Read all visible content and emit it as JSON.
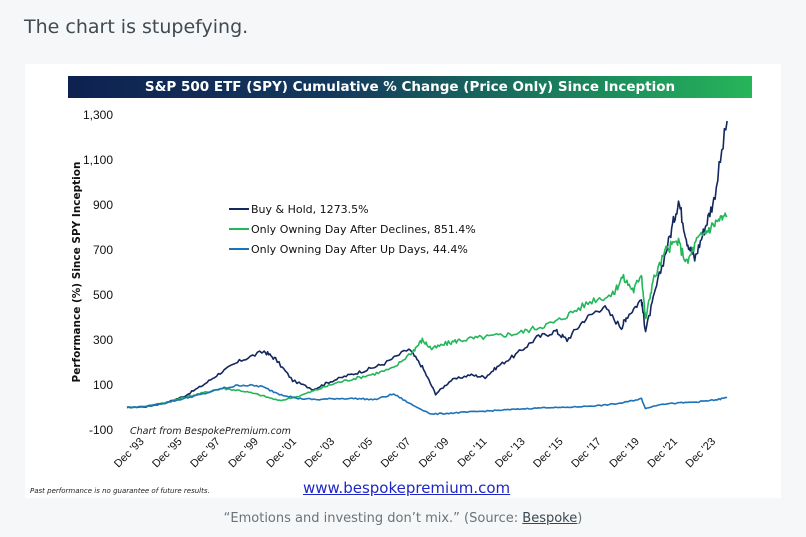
{
  "lead_text": "The chart is stupefying.",
  "chart_data": {
    "type": "line",
    "title": "S&P 500 ETF (SPY) Cumulative % Change (Price Only) Since Inception",
    "ylabel": "Performance (%) Since SPY Inception",
    "xlabel": "",
    "ylim": [
      -100,
      1300
    ],
    "yticks": [
      "1,300",
      "1,100",
      "900",
      "700",
      "500",
      "300",
      "100",
      "-100"
    ],
    "ytick_values": [
      1300,
      1100,
      900,
      700,
      500,
      300,
      100,
      -100
    ],
    "xticks": [
      "Dec '93",
      "Dec '95",
      "Dec '97",
      "Dec '99",
      "Dec '01",
      "Dec '03",
      "Dec '05",
      "Dec '07",
      "Dec '09",
      "Dec '11",
      "Dec '13",
      "Dec '15",
      "Dec '17",
      "Dec '19",
      "Dec '21",
      "Dec '23"
    ],
    "xtick_years": [
      1993.92,
      1995.92,
      1997.92,
      1999.92,
      2001.92,
      2003.92,
      2005.92,
      2007.92,
      2009.92,
      2011.92,
      2013.92,
      2015.92,
      2017.92,
      2019.92,
      2021.92,
      2023.92
    ],
    "xlim": [
      1993.0,
      2024.6
    ],
    "series": [
      {
        "name": "Buy & Hold, 1273.5%",
        "color": "#14275e",
        "x": [
          1993.0,
          1994.0,
          1995.0,
          1996.0,
          1997.0,
          1998.0,
          1999.0,
          2000.2,
          2000.8,
          2001.7,
          2002.8,
          2003.5,
          2004.5,
          2005.5,
          2006.5,
          2007.8,
          2008.5,
          2009.2,
          2010.0,
          2011.0,
          2011.8,
          2012.5,
          2013.5,
          2014.5,
          2015.5,
          2016.1,
          2017.0,
          2018.0,
          2018.95,
          2019.2,
          2020.0,
          2020.22,
          2020.8,
          2021.5,
          2021.95,
          2022.4,
          2022.8,
          2023.3,
          2023.8,
          2024.5
        ],
        "y": [
          0,
          3,
          20,
          50,
          100,
          160,
          210,
          250,
          215,
          120,
          80,
          110,
          140,
          165,
          195,
          260,
          180,
          60,
          120,
          145,
          135,
          185,
          240,
          310,
          340,
          300,
          390,
          450,
          355,
          400,
          480,
          340,
          540,
          760,
          920,
          740,
          660,
          790,
          920,
          1273.5
        ]
      },
      {
        "name": "Only Owning Day After Declines, 851.4%",
        "color": "#23b75a",
        "x": [
          1993.0,
          1994.0,
          1995.0,
          1996.0,
          1997.0,
          1998.0,
          1999.0,
          2000.0,
          2001.0,
          2002.0,
          2003.0,
          2004.0,
          2005.0,
          2006.0,
          2007.0,
          2008.0,
          2008.5,
          2009.0,
          2009.8,
          2010.5,
          2011.5,
          2012.5,
          2013.5,
          2014.5,
          2015.5,
          2016.5,
          2017.5,
          2018.5,
          2019.0,
          2019.6,
          2020.0,
          2020.22,
          2020.6,
          2021.3,
          2021.9,
          2022.4,
          2022.9,
          2023.5,
          2024.0,
          2024.5
        ],
        "y": [
          0,
          5,
          22,
          45,
          65,
          85,
          75,
          55,
          30,
          50,
          80,
          110,
          130,
          150,
          175,
          250,
          300,
          260,
          285,
          300,
          310,
          320,
          330,
          355,
          380,
          430,
          480,
          500,
          580,
          520,
          600,
          390,
          560,
          700,
          740,
          640,
          740,
          790,
          830,
          851.4
        ]
      },
      {
        "name": "Only Owning Day After Up Days, 44.4%",
        "color": "#1d72b8",
        "x": [
          1993.0,
          1994.0,
          1995.0,
          1996.0,
          1997.0,
          1998.0,
          1999.0,
          2000.0,
          2001.0,
          2002.0,
          2003.0,
          2004.0,
          2005.0,
          2006.0,
          2007.0,
          2008.0,
          2009.0,
          2010.0,
          2011.0,
          2012.0,
          2013.0,
          2014.0,
          2015.0,
          2016.0,
          2017.0,
          2018.0,
          2019.0,
          2020.0,
          2020.22,
          2021.0,
          2022.0,
          2023.0,
          2024.0,
          2024.5
        ],
        "y": [
          0,
          5,
          20,
          40,
          60,
          85,
          100,
          95,
          60,
          40,
          35,
          40,
          40,
          35,
          60,
          10,
          -30,
          -25,
          -20,
          -15,
          -10,
          -5,
          0,
          0,
          5,
          10,
          20,
          40,
          -5,
          15,
          20,
          25,
          35,
          44.4
        ]
      }
    ],
    "legend_position": "upper-left",
    "grid": false,
    "annotation": "Chart from BespokePremium.com",
    "disclaimer": "Past performance is no guarantee of future results.",
    "source_url": "www.bespokepremium.com"
  },
  "caption": {
    "text": "“Emotions and investing don’t mix.” (Source: ",
    "link": "Bespoke",
    "end": ")"
  }
}
